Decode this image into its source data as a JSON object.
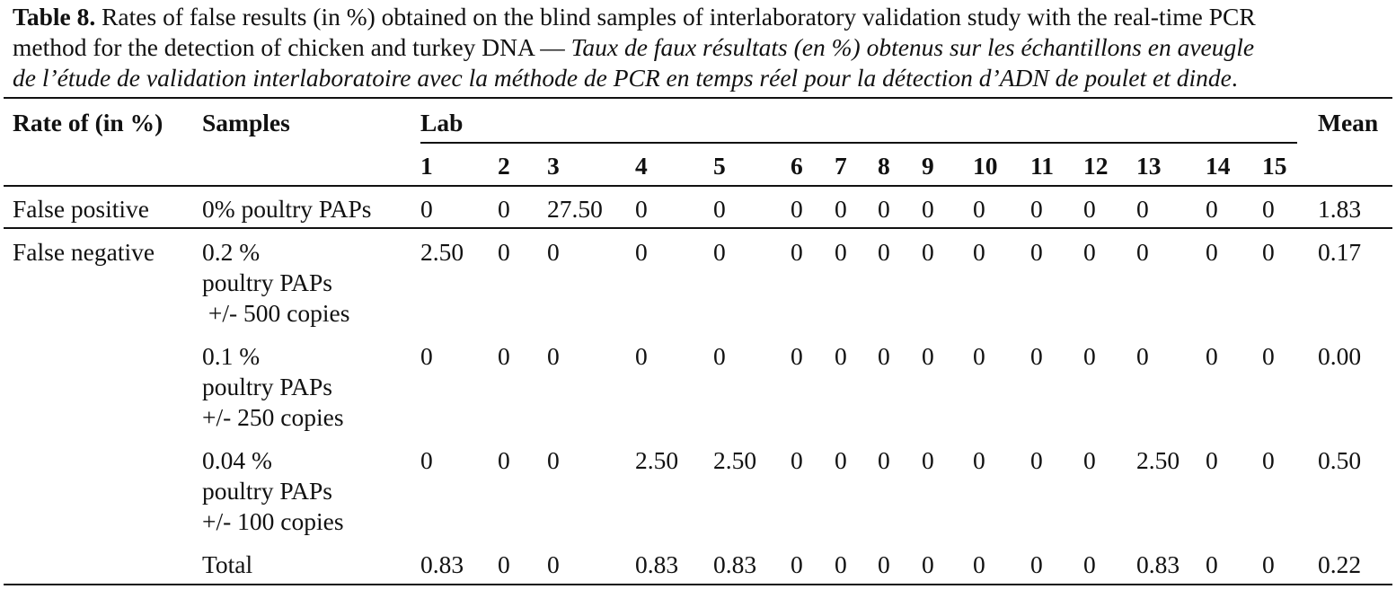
{
  "caption": {
    "label": "Table 8.",
    "line1_rest": "Rates of false results (in %) obtained on the blind samples of interlaboratory validation study with the real-time PCR",
    "line2_plain": "method for the detection of chicken and turkey DNA — ",
    "line2_italic": "Taux de faux résultats (en %) obtenus sur les échantillons en aveugle",
    "line3_italic": "de l’étude de validation interlaboratoire avec la méthode de PCR en temps réel pour la détection d’ADN de poulet et dinde",
    "line3_end": "."
  },
  "header": {
    "rate": "Rate of (in %)",
    "samples": "Samples",
    "lab": "Lab",
    "mean": "Mean",
    "labs": [
      "1",
      "2",
      "3",
      "4",
      "5",
      "6",
      "7",
      "8",
      "9",
      "10",
      "11",
      "12",
      "13",
      "14",
      "15"
    ]
  },
  "rows": [
    {
      "rate": "False positive",
      "sample_lines": [
        "0% poultry PAPs"
      ],
      "values": [
        "0",
        "0",
        "27.50",
        "0",
        "0",
        "0",
        "0",
        "0",
        "0",
        "0",
        "0",
        "0",
        "0",
        "0",
        "0"
      ],
      "mean": "1.83"
    },
    {
      "rate": "False negative",
      "sample_lines": [
        "0.2 %",
        "poultry PAPs",
        " +/- 500 copies"
      ],
      "values": [
        "2.50",
        "0",
        "0",
        "0",
        "0",
        "0",
        "0",
        "0",
        "0",
        "0",
        "0",
        "0",
        "0",
        "0",
        "0"
      ],
      "mean": "0.17"
    },
    {
      "rate": "",
      "sample_lines": [
        "0.1 %",
        "poultry PAPs",
        "+/- 250 copies"
      ],
      "values": [
        "0",
        "0",
        "0",
        "0",
        "0",
        "0",
        "0",
        "0",
        "0",
        "0",
        "0",
        "0",
        "0",
        "0",
        "0"
      ],
      "mean": "0.00"
    },
    {
      "rate": "",
      "sample_lines": [
        "0.04 %",
        "poultry PAPs",
        "+/- 100 copies"
      ],
      "values": [
        "0",
        "0",
        "0",
        "2.50",
        "2.50",
        "0",
        "0",
        "0",
        "0",
        "0",
        "0",
        "0",
        "2.50",
        "0",
        "0"
      ],
      "mean": "0.50"
    },
    {
      "rate": "",
      "sample_lines": [
        "Total"
      ],
      "values": [
        "0.83",
        "0",
        "0",
        "0.83",
        "0.83",
        "0",
        "0",
        "0",
        "0",
        "0",
        "0",
        "0",
        "0.83",
        "0",
        "0"
      ],
      "mean": "0.22"
    }
  ]
}
